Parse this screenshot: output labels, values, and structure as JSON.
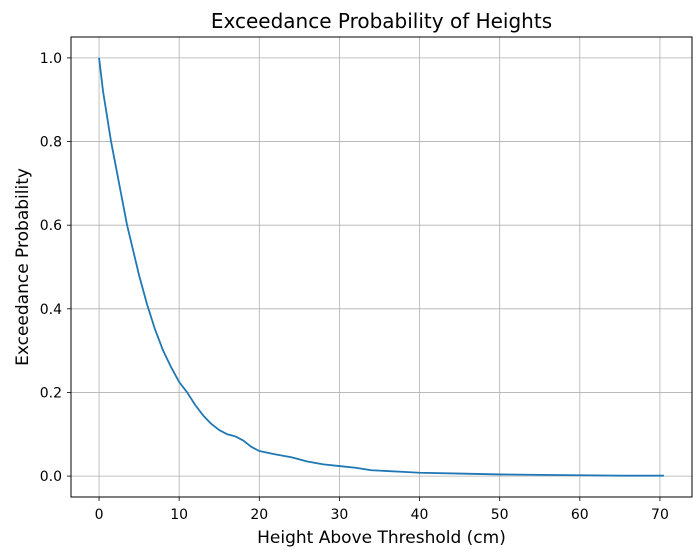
{
  "chart_data": {
    "type": "line",
    "title": "Exceedance Probability of Heights",
    "xlabel": "Height Above Threshold (cm)",
    "ylabel": "Exceedance Probability",
    "xlim": [
      -3.5,
      74.0
    ],
    "ylim": [
      -0.05,
      1.05
    ],
    "xticks": [
      0,
      10,
      20,
      30,
      40,
      50,
      60,
      70
    ],
    "yticks": [
      0.0,
      0.2,
      0.4,
      0.6,
      0.8,
      1.0
    ],
    "xtick_labels": [
      "0",
      "10",
      "20",
      "30",
      "40",
      "50",
      "60",
      "70"
    ],
    "ytick_labels": [
      "0.0",
      "0.2",
      "0.4",
      "0.6",
      "0.8",
      "1.0"
    ],
    "grid": true,
    "series": [
      {
        "color": "#1f77b4",
        "x": [
          0,
          0.5,
          1,
          1.5,
          2,
          2.5,
          3,
          3.5,
          4,
          5,
          6,
          7,
          8,
          9,
          10,
          11,
          12,
          13,
          14,
          15,
          16,
          17,
          18,
          19,
          20,
          22,
          24,
          26,
          28,
          30,
          32,
          34,
          36,
          38,
          40,
          45,
          50,
          55,
          60,
          65,
          70.5
        ],
        "y": [
          1.0,
          0.92,
          0.86,
          0.8,
          0.75,
          0.7,
          0.65,
          0.6,
          0.56,
          0.48,
          0.41,
          0.35,
          0.3,
          0.26,
          0.225,
          0.2,
          0.17,
          0.145,
          0.125,
          0.11,
          0.1,
          0.095,
          0.085,
          0.07,
          0.06,
          0.052,
          0.045,
          0.035,
          0.028,
          0.024,
          0.02,
          0.014,
          0.012,
          0.01,
          0.008,
          0.006,
          0.004,
          0.003,
          0.002,
          0.001,
          0.001
        ]
      }
    ]
  }
}
